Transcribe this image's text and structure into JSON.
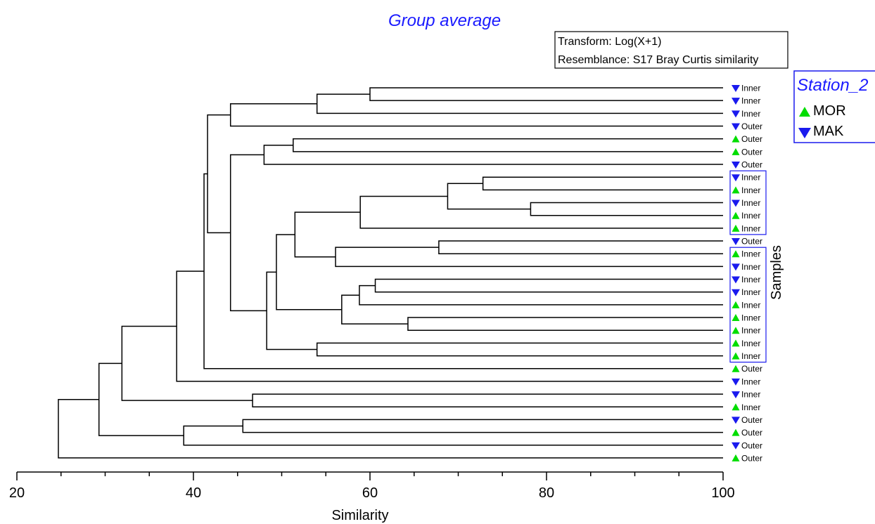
{
  "chart_data": {
    "type": "dendrogram",
    "title": "Group average",
    "annotation": [
      "Transform: Log(X+1)",
      "Resemblance: S17 Bray Curtis similarity"
    ],
    "xlabel": "Similarity",
    "ylabel": "Samples",
    "xlim": [
      20,
      100
    ],
    "xticks": [
      20,
      40,
      60,
      80,
      100
    ],
    "legend": {
      "title": "Station_2",
      "position": "right",
      "entries": [
        {
          "name": "MOR",
          "marker": "triangle-up",
          "color": "#00dd00"
        },
        {
          "name": "MAK",
          "marker": "triangle-down",
          "color": "#1a1aee"
        }
      ]
    },
    "leaves": [
      {
        "label": "Inner",
        "station": "MAK"
      },
      {
        "label": "Inner",
        "station": "MAK"
      },
      {
        "label": "Inner",
        "station": "MAK"
      },
      {
        "label": "Outer",
        "station": "MAK"
      },
      {
        "label": "Outer",
        "station": "MOR"
      },
      {
        "label": "Outer",
        "station": "MOR"
      },
      {
        "label": "Outer",
        "station": "MAK"
      },
      {
        "label": "Inner",
        "station": "MAK"
      },
      {
        "label": "Inner",
        "station": "MOR"
      },
      {
        "label": "Inner",
        "station": "MAK"
      },
      {
        "label": "Inner",
        "station": "MOR"
      },
      {
        "label": "Inner",
        "station": "MOR"
      },
      {
        "label": "Outer",
        "station": "MAK"
      },
      {
        "label": "Inner",
        "station": "MOR"
      },
      {
        "label": "Inner",
        "station": "MAK"
      },
      {
        "label": "Inner",
        "station": "MAK"
      },
      {
        "label": "Inner",
        "station": "MAK"
      },
      {
        "label": "Inner",
        "station": "MOR"
      },
      {
        "label": "Inner",
        "station": "MOR"
      },
      {
        "label": "Inner",
        "station": "MOR"
      },
      {
        "label": "Inner",
        "station": "MOR"
      },
      {
        "label": "Inner",
        "station": "MOR"
      },
      {
        "label": "Outer",
        "station": "MOR"
      },
      {
        "label": "Inner",
        "station": "MAK"
      },
      {
        "label": "Inner",
        "station": "MAK"
      },
      {
        "label": "Inner",
        "station": "MOR"
      },
      {
        "label": "Outer",
        "station": "MAK"
      },
      {
        "label": "Outer",
        "station": "MOR"
      },
      {
        "label": "Outer",
        "station": "MAK"
      },
      {
        "label": "Outer",
        "station": "MOR"
      }
    ],
    "merges": [
      {
        "id": "m1",
        "a": 0,
        "b": 1,
        "sim": 60
      },
      {
        "id": "m2",
        "a": "m1",
        "b": 2,
        "sim": 54
      },
      {
        "id": "m3",
        "a": "m2",
        "b": 3,
        "sim": 44.2
      },
      {
        "id": "m4",
        "a": 4,
        "b": 5,
        "sim": 51.3
      },
      {
        "id": "m5",
        "a": "m4",
        "b": 6,
        "sim": 48
      },
      {
        "id": "m6",
        "a": 7,
        "b": 8,
        "sim": 72.8
      },
      {
        "id": "m7",
        "a": 9,
        "b": 10,
        "sim": 78.2
      },
      {
        "id": "m8",
        "a": "m6",
        "b": "m7",
        "sim": 68.8
      },
      {
        "id": "m9",
        "a": "m8",
        "b": 11,
        "sim": 58.9
      },
      {
        "id": "m10",
        "a": 12,
        "b": 13,
        "sim": 67.8
      },
      {
        "id": "m11",
        "a": "m10",
        "b": 14,
        "sim": 56.1
      },
      {
        "id": "m12",
        "a": "m9",
        "b": "m11",
        "sim": 51.5
      },
      {
        "id": "m13",
        "a": 15,
        "b": 16,
        "sim": 60.6
      },
      {
        "id": "m14",
        "a": "m13",
        "b": 17,
        "sim": 58.8
      },
      {
        "id": "m15",
        "a": 18,
        "b": 19,
        "sim": 64.3
      },
      {
        "id": "m16",
        "a": "m14",
        "b": "m15",
        "sim": 56.8
      },
      {
        "id": "m17",
        "a": "m12",
        "b": "m16",
        "sim": 49.4
      },
      {
        "id": "m18",
        "a": 20,
        "b": 21,
        "sim": 54
      },
      {
        "id": "m19",
        "a": "m17",
        "b": "m18",
        "sim": 48.3
      },
      {
        "id": "m20",
        "a": "m5",
        "b": "m19",
        "sim": 44.2
      },
      {
        "id": "m21",
        "a": "m3",
        "b": "m20",
        "sim": 41.6
      },
      {
        "id": "m22",
        "a": "m21",
        "b": 22,
        "sim": 41.2
      },
      {
        "id": "m23",
        "a": "m22",
        "b": 23,
        "sim": 38.1
      },
      {
        "id": "m24",
        "a": 24,
        "b": 25,
        "sim": 46.7
      },
      {
        "id": "m25",
        "a": "m23",
        "b": "m24",
        "sim": 31.9
      },
      {
        "id": "m26",
        "a": 26,
        "b": 27,
        "sim": 45.6
      },
      {
        "id": "m27",
        "a": "m26",
        "b": 28,
        "sim": 38.9
      },
      {
        "id": "m28",
        "a": "m25",
        "b": "m27",
        "sim": 29.3
      },
      {
        "id": "m29",
        "a": "m28",
        "b": 29,
        "sim": 24.7
      }
    ],
    "highlight_groups": [
      [
        7,
        11
      ],
      [
        13,
        21
      ]
    ]
  }
}
